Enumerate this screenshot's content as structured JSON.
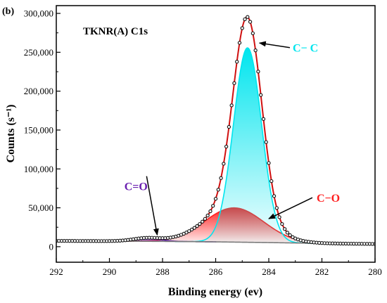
{
  "panel_label": "(b)",
  "chart_data": {
    "type": "line",
    "title": "TKNR(A) C1s",
    "xlabel": "Binding energy (ev)",
    "ylabel": "Counts (s⁻¹)",
    "xlim": [
      292,
      280
    ],
    "x_reversed": true,
    "ylim": [
      -20000,
      310000
    ],
    "x_ticks": [
      292,
      290,
      288,
      286,
      284,
      282,
      280
    ],
    "y_ticks": [
      0,
      50000,
      100000,
      150000,
      200000,
      250000,
      300000
    ],
    "y_tick_labels": [
      "0",
      "50,000",
      "100,000",
      "150,000",
      "200,000",
      "250,000",
      "300,000"
    ],
    "grid": false,
    "background_baseline": {
      "x": [
        292,
        290,
        288,
        286,
        284,
        282,
        280
      ],
      "y": [
        7500,
        7200,
        6800,
        6200,
        5300,
        4200,
        3500
      ]
    },
    "peaks": [
      {
        "name": "C− C",
        "center": 284.8,
        "height": 250000,
        "fwhm": 1.25,
        "fill_color": "#00e5ee",
        "line_color": "#00e5ee"
      },
      {
        "name": "C−O",
        "center": 285.3,
        "height": 44000,
        "fwhm": 2.6,
        "fill_color": "#ff2020",
        "line_color": "#ff2020"
      },
      {
        "name": "C=O",
        "center": 288.6,
        "height": 4000,
        "fwhm": 1.2,
        "fill_color": "#7b2fbf",
        "line_color": "#5a1ea0"
      }
    ],
    "annotations": [
      {
        "text": "C− C",
        "color": "#00e5ee",
        "x": 283.1,
        "y": 256000
      },
      {
        "text": "C−O",
        "color": "#ff2020",
        "x": 282.2,
        "y": 63000
      },
      {
        "text": "C=O",
        "color": "#6a1fb0",
        "x": 289.0,
        "y": 78000
      }
    ],
    "legend": "none"
  }
}
